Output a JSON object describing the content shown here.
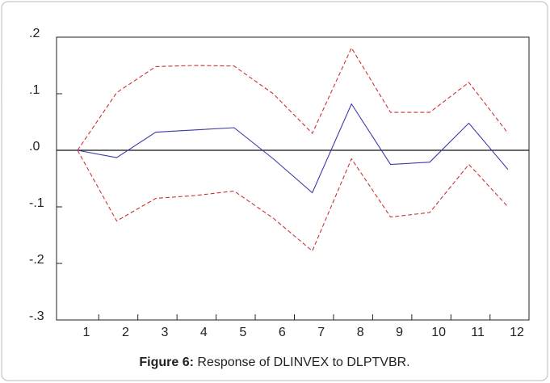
{
  "chart_data": {
    "type": "line",
    "categories": [
      "1",
      "2",
      "3",
      "4",
      "5",
      "6",
      "7",
      "8",
      "9",
      "10",
      "11",
      "12"
    ],
    "series": [
      {
        "color": "#cc3333",
        "dash": true,
        "values": [
          0,
          0.102,
          0.148,
          0.15,
          0.149,
          0.1,
          0.03,
          0.181,
          0.067,
          0.067,
          0.12,
          0.03
        ]
      },
      {
        "color": "#3a3aa8",
        "dash": false,
        "values": [
          0,
          -0.013,
          0.032,
          0.036,
          0.04,
          -0.015,
          -0.075,
          0.082,
          -0.025,
          -0.021,
          0.048,
          -0.034
        ]
      },
      {
        "color": "#cc3333",
        "dash": true,
        "values": [
          0,
          -0.125,
          -0.085,
          -0.08,
          -0.072,
          -0.12,
          -0.178,
          -0.015,
          -0.118,
          -0.11,
          -0.025,
          -0.1
        ]
      }
    ],
    "ylim": [
      -0.3,
      0.2
    ],
    "yticks": [
      {
        "value": 0.2,
        "label": ".2"
      },
      {
        "value": 0.1,
        "label": ".1"
      },
      {
        "value": 0,
        "label": ".0"
      },
      {
        "value": -0.1,
        "label": "-.1"
      },
      {
        "value": -0.2,
        "label": "-.2"
      },
      {
        "value": -0.3,
        "label": "-.3"
      }
    ],
    "zero_line": true,
    "caption_label": "Figure 6:",
    "caption": " Response of DLINVEX to DLPTVBR."
  }
}
